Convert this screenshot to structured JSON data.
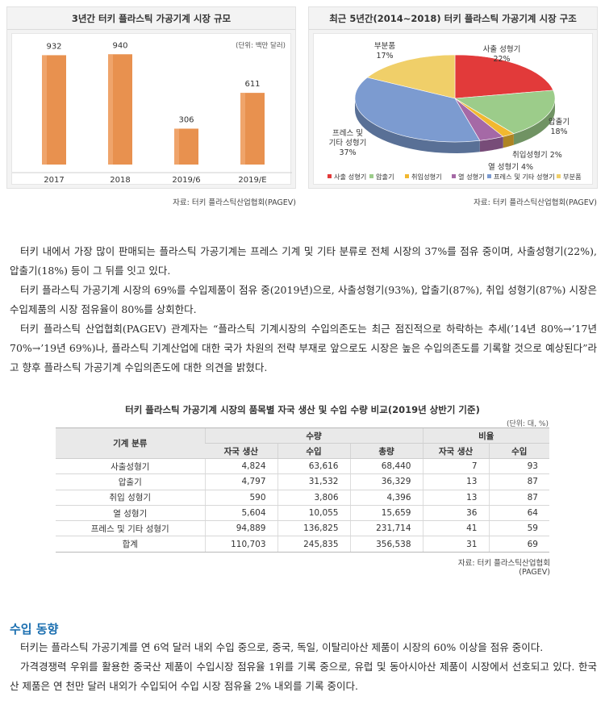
{
  "chart_data": [
    {
      "type": "bar",
      "title": "3년간 터키 플라스틱 가공기계 시장 규모",
      "unit_note": "(단위: 백만 달러)",
      "categories": [
        "2017",
        "2018",
        "2019/6",
        "2019/E"
      ],
      "values": [
        932,
        940,
        306,
        611
      ],
      "ylim": [
        0,
        1100
      ],
      "color": "#e8914f",
      "source": "자료: 터키 플라스틱산업협회(PAGEV)"
    },
    {
      "type": "pie",
      "title": "최근 5년간(2014~2018) 터키 플라스틱 가공기계 시장 구조",
      "slices": [
        {
          "label": "사출 성형기",
          "value": 22,
          "value_label": "22%",
          "color": "#e23a3a"
        },
        {
          "label": "압출기",
          "value": 18,
          "value_label": "18%",
          "color": "#9ccc8a"
        },
        {
          "label": "취입성형기",
          "value": 2,
          "value_label": "2%",
          "color": "#f2b830"
        },
        {
          "label": "열 성형기",
          "value": 4,
          "value_label": "4%",
          "color": "#a569a6"
        },
        {
          "label": "프레스 및 기타 성형기",
          "value": 37,
          "value_label": "37%",
          "color": "#7c9bd0"
        },
        {
          "label": "부분품",
          "value": 17,
          "value_label": "17%",
          "color": "#f0cf69"
        }
      ],
      "callouts": {
        "injection": [
          "사출 성형기",
          "22%"
        ],
        "extruder": [
          "압출기",
          "18%"
        ],
        "blow": "취입성형기 2%",
        "thermo": "열 성형기 4%",
        "press": [
          "프레스 및",
          "기타 성형기",
          "37%"
        ],
        "parts": [
          "부분품",
          "17%"
        ]
      },
      "legend": [
        "사출 성형기",
        "압출기",
        "취입성형기",
        "열 성형기",
        "프레스 및 기타 성형기",
        "부분품"
      ],
      "legend_position": "bottom",
      "source": "자료: 터키 플라스틱산업협회(PAGEV)"
    }
  ],
  "paragraphs": [
    "터키 내에서 가장 많이 판매되는 플라스틱 가공기계는 프레스 기계 및 기타 분류로 전체 시장의 37%를 점유 중이며, 사출성형기(22%), 압출기(18%) 등이 그 뒤를 잇고 있다.",
    "터키 플라스틱 가공기계 시장의 69%를 수입제품이 점유 중(2019년)으로, 사출성형기(93%), 압출기(87%), 취입 성형기(87%) 시장은 수입제품의 시장 점유율이 80%를 상회한다.",
    "터키 플라스틱 산업협회(PAGEV) 관계자는 “플라스틱 기계시장의 수입의존도는 최근 점진적으로 하락하는 추세(’14년 80%→’17년 70%→’19년 69%)나, 플라스틱 기계산업에 대한 국가 차원의 전략 부재로 앞으로도 시장은 높은 수입의존도를 기록할 것으로 예상된다”라고 향후 플라스틱 가공기계 수입의존도에 대한 의견을 밝혔다."
  ],
  "table": {
    "title": "터키 플라스틱 가공기계 시장의 품목별 자국 생산 및 수입 수량 비교(2019년 상반기 기준)",
    "unit": "(단위: 대, %)",
    "header_category": "기계 분류",
    "group_quantity": "수량",
    "group_ratio": "비율",
    "subheaders": [
      "자국 생산",
      "수입",
      "총량",
      "자국 생산",
      "수입"
    ],
    "rows": [
      {
        "name": "사출성형기",
        "values": [
          "4,824",
          "63,616",
          "68,440",
          "7",
          "93"
        ]
      },
      {
        "name": "압출기",
        "values": [
          "4,797",
          "31,532",
          "36,329",
          "13",
          "87"
        ]
      },
      {
        "name": "취입 성형기",
        "values": [
          "590",
          "3,806",
          "4,396",
          "13",
          "87"
        ]
      },
      {
        "name": "열 성형기",
        "values": [
          "5,604",
          "10,055",
          "15,659",
          "36",
          "64"
        ]
      },
      {
        "name": "프레스 및 기타 성형기",
        "values": [
          "94,889",
          "136,825",
          "231,714",
          "41",
          "59"
        ]
      },
      {
        "name": "합계",
        "values": [
          "110,703",
          "245,835",
          "356,538",
          "31",
          "69"
        ]
      }
    ],
    "source": "자료: 터키 플라스틱산업협회(PAGEV)"
  },
  "section": {
    "heading": "수입 동향",
    "paragraphs": [
      "터키는 플라스틱 가공기계를 연 6억 달러 내외 수입 중으로, 중국, 독일, 이탈리아산 제품이 시장의 60% 이상을 점유 중이다.",
      "가격경쟁력 우위를 활용한 중국산 제품이 수입시장 점유율 1위를 기록 중으로, 유럽 및 동아시아산 제품이 시장에서 선호되고 있다. 한국산 제품은 연 천만 달러 내외가 수입되어 수입 시장 점유율 2% 내외를 기록 중이다."
    ]
  }
}
